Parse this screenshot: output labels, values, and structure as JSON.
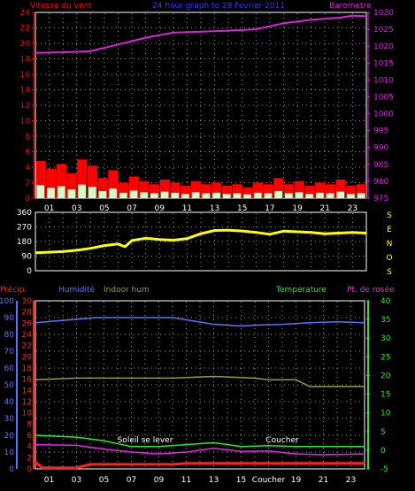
{
  "colors": {
    "background": "#000000",
    "axis": "#ffffff",
    "grid": "#9a9a9a",
    "wind_label": "#ff0000",
    "title": "#3333ff",
    "barometer": "#dd22dd",
    "wind_direction": "#ffff00",
    "precip": "#ff2020",
    "humidity": "#5577ff",
    "indoor_hum": "#999933",
    "temperature": "#22ee22",
    "dewpoint": "#ee22ee"
  },
  "chart_data": [
    {
      "id": "wind-baro",
      "type": "area",
      "title": "24 hour graph to  28 Fevrier 2011",
      "left_axis_label": "Vitesse du vent",
      "right_axis_label": "Barometre",
      "left_ticks": [
        "24",
        "22",
        "20",
        "18",
        "16",
        "14",
        "12",
        "10",
        "8",
        "6",
        "4",
        "2",
        "0"
      ],
      "left_range": [
        0,
        24
      ],
      "right_ticks": [
        "1030",
        "1025",
        "1020",
        "1015",
        "1010",
        "1005",
        "1000",
        "995",
        "990",
        "985",
        "980",
        "975"
      ],
      "right_range": [
        975,
        1030
      ],
      "x_ticks": [
        "01",
        "03",
        "05",
        "07",
        "09",
        "11",
        "13",
        "15",
        "17",
        "19",
        "21",
        "23"
      ],
      "series": [
        {
          "name": "Barometre",
          "axis": "right",
          "color": "#dd22dd",
          "points": [
            [
              0,
              1018
            ],
            [
              2,
              1018.2
            ],
            [
              4,
              1018.5
            ],
            [
              6,
              1020.5
            ],
            [
              8,
              1022.5
            ],
            [
              10,
              1024
            ],
            [
              12,
              1024.3
            ],
            [
              14,
              1024.6
            ],
            [
              16,
              1025
            ],
            [
              18,
              1026.8
            ],
            [
              20,
              1027.8
            ],
            [
              22,
              1028.4
            ],
            [
              23,
              1029
            ],
            [
              24,
              1028.9
            ]
          ]
        },
        {
          "name": "Vitesse du vent",
          "axis": "left",
          "color": "#ff0000",
          "values": [
            4.8,
            3.8,
            4.4,
            3.2,
            5.0,
            4.2,
            2.6,
            3.6,
            2.0,
            2.8,
            2.2,
            1.8,
            2.4,
            2.0,
            1.6,
            2.2,
            1.8,
            2.0,
            1.6,
            1.8,
            1.4,
            2.0,
            1.8,
            2.6,
            1.8,
            2.2,
            1.6,
            2.0,
            1.8,
            2.4,
            1.6,
            1.8
          ]
        }
      ]
    },
    {
      "id": "wind-direction",
      "type": "line",
      "left_ticks": [
        "360",
        "270",
        "180",
        "90",
        "0"
      ],
      "left_range": [
        0,
        360
      ],
      "right_letters": [
        "S",
        "E",
        "N",
        "O",
        "S"
      ],
      "x_ticks": [
        "01",
        "03",
        "05",
        "07",
        "09",
        "11",
        "13",
        "15",
        "17",
        "19",
        "21",
        "23"
      ],
      "series": [
        {
          "name": "Direction",
          "color": "#ffff00",
          "points": [
            [
              0,
              110
            ],
            [
              2,
              118
            ],
            [
              3,
              126
            ],
            [
              4,
              138
            ],
            [
              5,
              155
            ],
            [
              6,
              165
            ],
            [
              6.5,
              148
            ],
            [
              7,
              186
            ],
            [
              8,
              200
            ],
            [
              9,
              192
            ],
            [
              10,
              188
            ],
            [
              11,
              198
            ],
            [
              12,
              228
            ],
            [
              13,
              248
            ],
            [
              14,
              250
            ],
            [
              15,
              245
            ],
            [
              16,
              236
            ],
            [
              17,
              225
            ],
            [
              18,
              244
            ],
            [
              19,
              240
            ],
            [
              20,
              236
            ],
            [
              21,
              228
            ],
            [
              22,
              232
            ],
            [
              23,
              236
            ],
            [
              24,
              232
            ]
          ]
        }
      ]
    },
    {
      "id": "humidity-temp",
      "type": "line",
      "labels": {
        "precip": "Précip.",
        "humidity": "Humidité",
        "indoor_hum": "Indoor hum",
        "temperature": "Temperature",
        "dewpoint": "Pt. de rosée"
      },
      "humidity_ticks": [
        "100",
        "90",
        "80",
        "70",
        "60",
        "50",
        "40",
        "30",
        "20",
        "10",
        "0"
      ],
      "humidity_range": [
        0,
        100
      ],
      "precip_ticks": [
        "30",
        "28",
        "26",
        "24",
        "22",
        "20",
        "18",
        "16",
        "14",
        "12",
        "10",
        "8",
        "6",
        "4",
        "2",
        "0"
      ],
      "precip_range": [
        0,
        30
      ],
      "temp_ticks": [
        "40",
        "35",
        "30",
        "25",
        "20",
        "15",
        "10",
        "5",
        "0",
        "-5"
      ],
      "temp_range": [
        -5,
        40
      ],
      "x_ticks": [
        "01",
        "03",
        "05",
        "07",
        "09",
        "11",
        "13",
        "15",
        "Coucher",
        "19",
        "21",
        "23"
      ],
      "annotations": [
        {
          "text": "Soleil se lever",
          "x": 8
        },
        {
          "text": "Coucher",
          "x": 18
        }
      ],
      "series": [
        {
          "name": "Humidité",
          "axis": "humidity",
          "color": "#5577ff",
          "points": [
            [
              0,
              87
            ],
            [
              3,
              89
            ],
            [
              4.5,
              90
            ],
            [
              10,
              90
            ],
            [
              11.5,
              88
            ],
            [
              13,
              86
            ],
            [
              15,
              85
            ],
            [
              16,
              85.5
            ],
            [
              18,
              86
            ],
            [
              20,
              87
            ],
            [
              22,
              87.5
            ],
            [
              24,
              87
            ]
          ]
        },
        {
          "name": "Indoor hum",
          "axis": "humidity",
          "color": "#999933",
          "points": [
            [
              0,
              53
            ],
            [
              3,
              54
            ],
            [
              5,
              54
            ],
            [
              10,
              54
            ],
            [
              13,
              55
            ],
            [
              16,
              54
            ],
            [
              17,
              53
            ],
            [
              18,
              53
            ],
            [
              19,
              53
            ],
            [
              20,
              49
            ],
            [
              22,
              49
            ],
            [
              24,
              49
            ]
          ]
        },
        {
          "name": "Temperature",
          "axis": "temp",
          "color": "#22ee22",
          "points": [
            [
              0,
              4
            ],
            [
              3,
              3.5
            ],
            [
              5,
              2.5
            ],
            [
              7,
              1
            ],
            [
              9,
              1
            ],
            [
              11,
              1.5
            ],
            [
              13,
              2
            ],
            [
              15,
              1
            ],
            [
              17,
              1.2
            ],
            [
              19,
              1
            ],
            [
              21,
              1
            ],
            [
              24,
              1
            ]
          ]
        },
        {
          "name": "Pt. de rosée",
          "axis": "temp",
          "color": "#ee22ee",
          "points": [
            [
              0,
              1.5
            ],
            [
              3,
              1.3
            ],
            [
              5,
              0.3
            ],
            [
              7,
              -0.5
            ],
            [
              9,
              -1
            ],
            [
              11,
              -0.5
            ],
            [
              13,
              0.5
            ],
            [
              15,
              -0.3
            ],
            [
              17,
              -0.2
            ],
            [
              19,
              -1
            ],
            [
              21,
              -1.2
            ],
            [
              24,
              -1
            ]
          ]
        },
        {
          "name": "Précip.",
          "axis": "precip",
          "color": "#ff2020",
          "points": [
            [
              0,
              1.2
            ],
            [
              0.5,
              0.2
            ],
            [
              3,
              0.2
            ],
            [
              4,
              0.8
            ],
            [
              10,
              0.8
            ],
            [
              11,
              1.0
            ],
            [
              24,
              1.0
            ]
          ]
        }
      ]
    }
  ]
}
